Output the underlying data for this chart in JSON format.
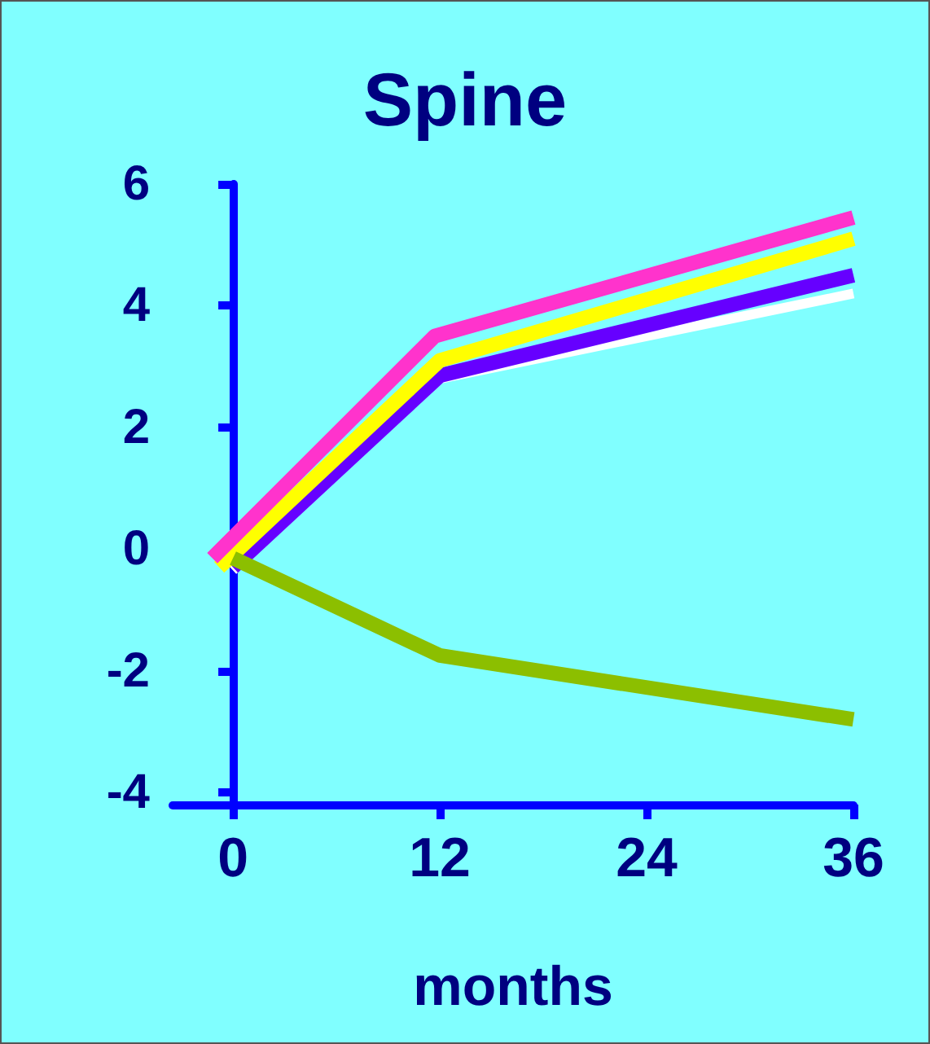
{
  "chart_data": {
    "type": "line",
    "title": "Spine",
    "xlabel": "months",
    "xlim": [
      -3.5,
      36
    ],
    "xticks": [
      0,
      12,
      24,
      36
    ],
    "ylim": [
      -4.2,
      6
    ],
    "yticks": [
      -4,
      -2,
      0,
      2,
      4,
      6
    ],
    "grid": false,
    "marker": "none",
    "line_style": "solid",
    "series": [
      {
        "color": "#ffffff",
        "x": [
          0,
          12,
          36
        ],
        "values": [
          -0.35,
          2.8,
          4.2
        ]
      },
      {
        "color": "#6600ff",
        "x": [
          0,
          12,
          36
        ],
        "values": [
          -0.3,
          2.85,
          4.5
        ]
      },
      {
        "color": "#ffff00",
        "x": [
          -0.8,
          12,
          36
        ],
        "values": [
          -0.3,
          3.1,
          5.1
        ]
      },
      {
        "color": "#ff33cc",
        "x": [
          -1.2,
          11.7,
          36
        ],
        "values": [
          -0.15,
          3.5,
          5.45
        ]
      },
      {
        "color": "#8cbf00",
        "x": [
          0,
          12,
          36
        ],
        "values": [
          -0.15,
          -1.75,
          -2.8
        ]
      }
    ]
  }
}
